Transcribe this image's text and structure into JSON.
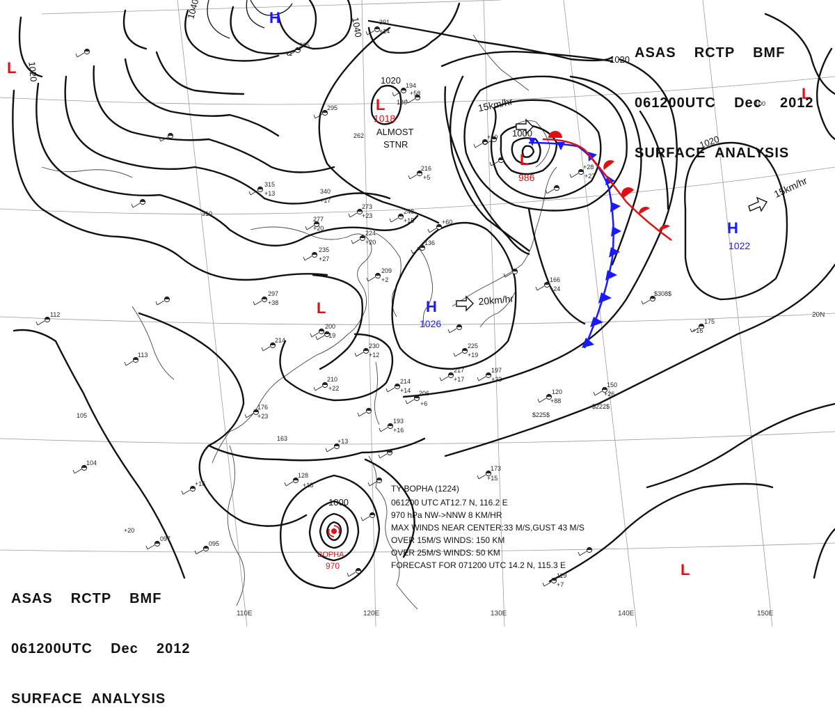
{
  "header_top_right": {
    "line1": "ASAS    RCTP    BMF",
    "line2": "061200UTC    Dec    2012",
    "line3": "SURFACE  ANALYSIS"
  },
  "header_bottom_left": {
    "line1": "ASAS    RCTP    BMF",
    "line2": "061200UTC    Dec    2012",
    "line3": "SURFACE  ANALYSIS"
  },
  "pressure_centers": [
    {
      "id": "h-north",
      "type": "H",
      "value": "",
      "color": "#1a1aff"
    },
    {
      "id": "l-far-left",
      "type": "L",
      "value": "",
      "color": "#e01010"
    },
    {
      "id": "l-mongolia",
      "type": "L",
      "value": "1018",
      "color": "#e01010"
    },
    {
      "id": "l-japan",
      "type": "L",
      "value": "986",
      "color": "#e01010"
    },
    {
      "id": "l-right",
      "type": "L",
      "value": "",
      "color": "#e01010"
    },
    {
      "id": "l-china",
      "type": "L",
      "value": "",
      "color": "#e01010"
    },
    {
      "id": "h-ecs",
      "type": "H",
      "value": "1026",
      "color": "#1a1aff"
    },
    {
      "id": "h-pacific",
      "type": "H",
      "value": "1022",
      "color": "#1a1aff"
    },
    {
      "id": "l-southeast",
      "type": "L",
      "value": "",
      "color": "#e01010"
    }
  ],
  "isobar_labels": [
    "1040",
    "1040",
    "1020",
    "1020",
    "1020",
    "1000",
    "1020",
    "1000"
  ],
  "motion_labels": [
    "15km/hr",
    "15km/hr",
    "20km/hr"
  ],
  "stationary_note": [
    "ALMOST",
    "STNR"
  ],
  "typhoon": {
    "name": "BOPHA",
    "pressure": "970",
    "bulletin": [
      "TY  BOPHA  (1224)",
      "061200 UTC  AT12.7 N, 116.2 E",
      "970 hPa  NW->NNW  8 KM/HR",
      "MAX WINDS NEAR CENTER:33 M/S,GUST 43 M/S",
      "OVER 15M/S WINDS: 150 KM",
      "OVER 25M/S WINDS: 50 KM",
      "FORECAST FOR 071200 UTC 14.2 N, 115.3 E"
    ]
  },
  "longitude_labels": [
    "110E",
    "120E",
    "130E",
    "140E",
    "150E"
  ],
  "latitude_labels": [
    "20N"
  ],
  "station_numbers": [
    "391",
    "+14",
    "305",
    "+1",
    "315",
    "+13",
    "340",
    "+17",
    "310",
    "277",
    "+20",
    "235",
    "+27",
    "297",
    "+38",
    "200",
    "+19",
    "214",
    "210",
    "+22",
    "176",
    "+23",
    "163",
    "+13",
    "273",
    "+23",
    "248",
    "+15",
    "224",
    "+20",
    "209",
    "+2",
    "230",
    "+12",
    "214",
    "+14",
    "206",
    "+6",
    "193",
    "+16",
    "225",
    "+19",
    "217",
    "+17",
    "197",
    "+23",
    "166",
    "+24",
    "175",
    "+16",
    "150",
    "+26",
    "120",
    "+88",
    "$225$",
    "$222$",
    "$308$",
    "112",
    "113",
    "105",
    "104",
    "+16",
    "097",
    "+20",
    "095",
    "128",
    "+18",
    "173",
    "+15",
    "119",
    "+7",
    "295",
    "262",
    "216",
    "+5",
    "194",
    "+58",
    "186",
    "+10",
    "100",
    "+60",
    "136",
    "+28",
    "+27",
    "+10"
  ],
  "colors": {
    "isobar": "#111111",
    "coast": "#444444",
    "grid": "#9a9a9a",
    "high": "#1a1aff",
    "low": "#e01010",
    "cold_front": "#1a1aff",
    "warm_front": "#e01010"
  }
}
